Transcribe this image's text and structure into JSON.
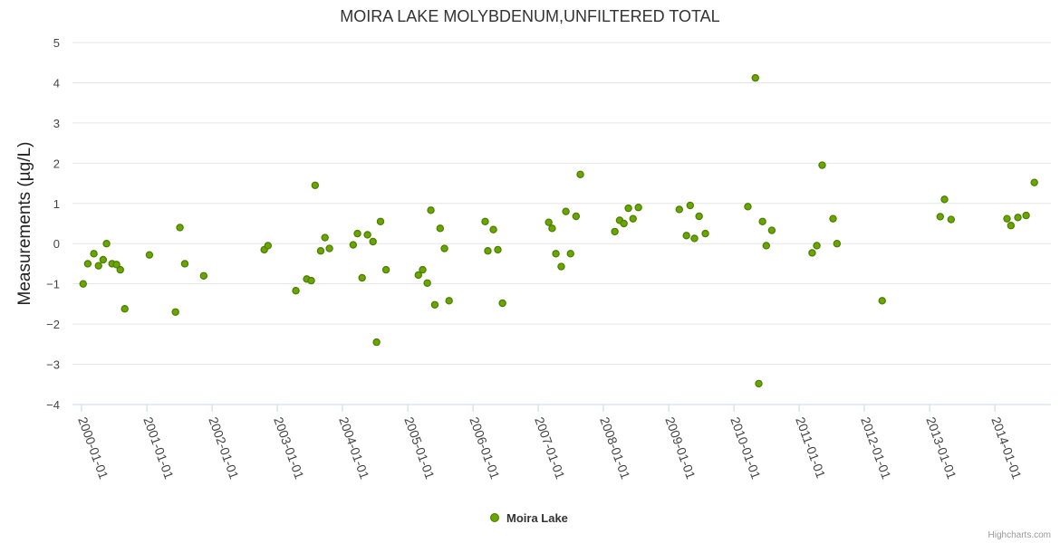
{
  "chart_data": {
    "type": "scatter",
    "title": "MOIRA LAKE MOLYBDENUM,UNFILTERED TOTAL",
    "ylabel": "Measurements (µg/L)",
    "xlabel": "",
    "ylim": [
      -4,
      5
    ],
    "yticks": [
      -4,
      -3,
      -2,
      -1,
      0,
      1,
      2,
      3,
      4,
      5
    ],
    "ytick_labels": [
      "−4",
      "−3",
      "−2",
      "−1",
      "0",
      "1",
      "2",
      "3",
      "4",
      "5"
    ],
    "xlim": [
      "1999-12-01",
      "2014-12-15"
    ],
    "xticks": [
      "2000-01-01",
      "2001-01-01",
      "2002-01-01",
      "2003-01-01",
      "2004-01-01",
      "2005-01-01",
      "2006-01-01",
      "2007-01-01",
      "2008-01-01",
      "2009-01-01",
      "2010-01-01",
      "2011-01-01",
      "2012-01-01",
      "2013-01-01",
      "2014-01-01"
    ],
    "grid": true,
    "legend_position": "bottom-center",
    "series": [
      {
        "name": "Moira Lake",
        "color": "#6aa500",
        "marker": "circle",
        "points": [
          [
            "2000-01-10",
            -1.0
          ],
          [
            "2000-02-05",
            -0.5
          ],
          [
            "2000-03-10",
            -0.25
          ],
          [
            "2000-04-05",
            -0.55
          ],
          [
            "2000-05-01",
            -0.4
          ],
          [
            "2000-05-20",
            0.0
          ],
          [
            "2000-06-20",
            -0.5
          ],
          [
            "2000-07-15",
            -0.52
          ],
          [
            "2000-08-05",
            -0.65
          ],
          [
            "2000-08-30",
            -1.62
          ],
          [
            "2001-01-15",
            -0.28
          ],
          [
            "2001-06-10",
            -1.7
          ],
          [
            "2001-07-05",
            0.4
          ],
          [
            "2001-08-01",
            -0.5
          ],
          [
            "2001-11-15",
            -0.8
          ],
          [
            "2002-10-20",
            -0.15
          ],
          [
            "2002-11-10",
            -0.05
          ],
          [
            "2003-04-15",
            -1.17
          ],
          [
            "2003-06-15",
            -0.88
          ],
          [
            "2003-07-10",
            -0.92
          ],
          [
            "2003-08-01",
            1.45
          ],
          [
            "2003-09-01",
            -0.18
          ],
          [
            "2003-09-25",
            0.15
          ],
          [
            "2003-10-20",
            -0.12
          ],
          [
            "2004-03-01",
            -0.03
          ],
          [
            "2004-03-25",
            0.25
          ],
          [
            "2004-04-20",
            -0.85
          ],
          [
            "2004-05-20",
            0.22
          ],
          [
            "2004-06-20",
            0.05
          ],
          [
            "2004-07-10",
            -2.45
          ],
          [
            "2004-08-01",
            0.55
          ],
          [
            "2004-09-01",
            -0.65
          ],
          [
            "2005-03-01",
            -0.78
          ],
          [
            "2005-03-25",
            -0.65
          ],
          [
            "2005-04-20",
            -0.98
          ],
          [
            "2005-05-10",
            0.83
          ],
          [
            "2005-06-01",
            -1.52
          ],
          [
            "2005-07-01",
            0.38
          ],
          [
            "2005-07-25",
            -0.12
          ],
          [
            "2005-08-20",
            -1.42
          ],
          [
            "2006-03-10",
            0.55
          ],
          [
            "2006-03-25",
            -0.18
          ],
          [
            "2006-04-25",
            0.35
          ],
          [
            "2006-05-20",
            -0.15
          ],
          [
            "2006-06-15",
            -1.48
          ],
          [
            "2007-03-01",
            0.53
          ],
          [
            "2007-03-20",
            0.38
          ],
          [
            "2007-04-10",
            -0.25
          ],
          [
            "2007-05-10",
            -0.57
          ],
          [
            "2007-06-05",
            0.8
          ],
          [
            "2007-07-01",
            -0.25
          ],
          [
            "2007-08-01",
            0.68
          ],
          [
            "2007-08-25",
            1.72
          ],
          [
            "2008-03-05",
            0.3
          ],
          [
            "2008-04-01",
            0.58
          ],
          [
            "2008-04-25",
            0.5
          ],
          [
            "2008-05-20",
            0.88
          ],
          [
            "2008-06-15",
            0.62
          ],
          [
            "2008-07-15",
            0.9
          ],
          [
            "2009-03-01",
            0.85
          ],
          [
            "2009-04-10",
            0.2
          ],
          [
            "2009-05-01",
            0.95
          ],
          [
            "2009-05-25",
            0.13
          ],
          [
            "2009-06-20",
            0.68
          ],
          [
            "2009-07-25",
            0.25
          ],
          [
            "2010-03-20",
            0.92
          ],
          [
            "2010-05-01",
            4.12
          ],
          [
            "2010-05-20",
            -3.48
          ],
          [
            "2010-06-10",
            0.55
          ],
          [
            "2010-07-01",
            -0.05
          ],
          [
            "2010-08-01",
            0.33
          ],
          [
            "2011-03-15",
            -0.23
          ],
          [
            "2011-04-10",
            -0.05
          ],
          [
            "2011-05-10",
            1.95
          ],
          [
            "2011-07-10",
            0.62
          ],
          [
            "2011-08-01",
            0.0
          ],
          [
            "2012-04-10",
            -1.42
          ],
          [
            "2013-03-01",
            0.67
          ],
          [
            "2013-03-25",
            1.1
          ],
          [
            "2013-05-01",
            0.6
          ],
          [
            "2014-03-10",
            0.62
          ],
          [
            "2014-04-01",
            0.45
          ],
          [
            "2014-05-10",
            0.65
          ],
          [
            "2014-06-25",
            0.7
          ],
          [
            "2014-08-10",
            1.52
          ]
        ]
      }
    ]
  },
  "credit": "Highcharts.com"
}
